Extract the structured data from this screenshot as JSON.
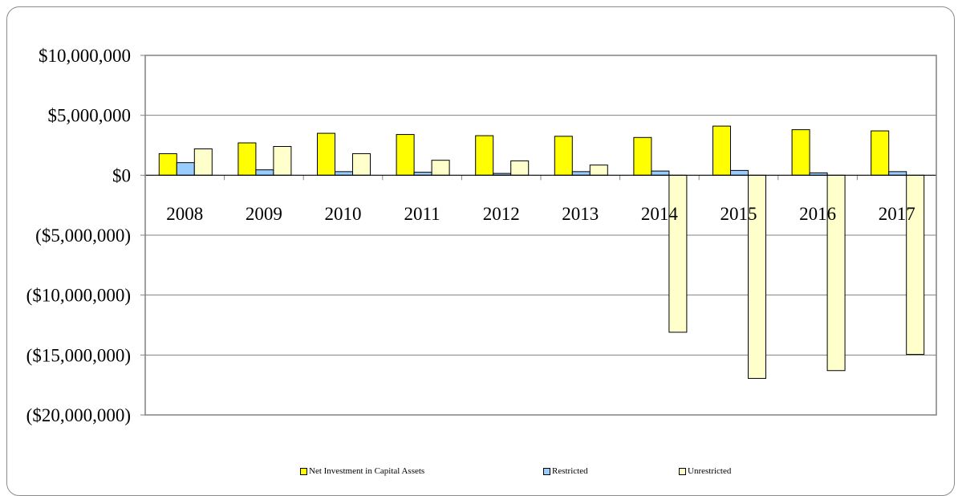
{
  "chart_data": {
    "type": "bar",
    "categories": [
      "2008",
      "2009",
      "2010",
      "2011",
      "2012",
      "2013",
      "2014",
      "2015",
      "2016",
      "2017"
    ],
    "series": [
      {
        "name": "Net Investment in Capital Assets",
        "color": "#ffff00",
        "values": [
          1800000,
          2700000,
          3500000,
          3400000,
          3300000,
          3250000,
          3150000,
          4100000,
          3800000,
          3700000
        ]
      },
      {
        "name": "Restricted",
        "color": "#99ccff",
        "values": [
          1050000,
          450000,
          300000,
          250000,
          150000,
          300000,
          350000,
          400000,
          200000,
          300000
        ]
      },
      {
        "name": "Unrestricted",
        "color": "#ffffcc",
        "values": [
          2200000,
          2400000,
          1800000,
          1250000,
          1200000,
          850000,
          -13100000,
          -16950000,
          -16300000,
          -14950000
        ]
      }
    ],
    "yticks": [
      {
        "value": 10000000,
        "label": "$10,000,000"
      },
      {
        "value": 5000000,
        "label": "$5,000,000"
      },
      {
        "value": 0,
        "label": "$0"
      },
      {
        "value": -5000000,
        "label": "($5,000,000)"
      },
      {
        "value": -10000000,
        "label": "($10,000,000)"
      },
      {
        "value": -15000000,
        "label": "($15,000,000)"
      },
      {
        "value": -20000000,
        "label": "($20,000,000)"
      }
    ],
    "ylim": [
      -20000000,
      10000000
    ],
    "grid": true,
    "legend_position": "bottom",
    "title": "",
    "xlabel": "",
    "ylabel": ""
  }
}
